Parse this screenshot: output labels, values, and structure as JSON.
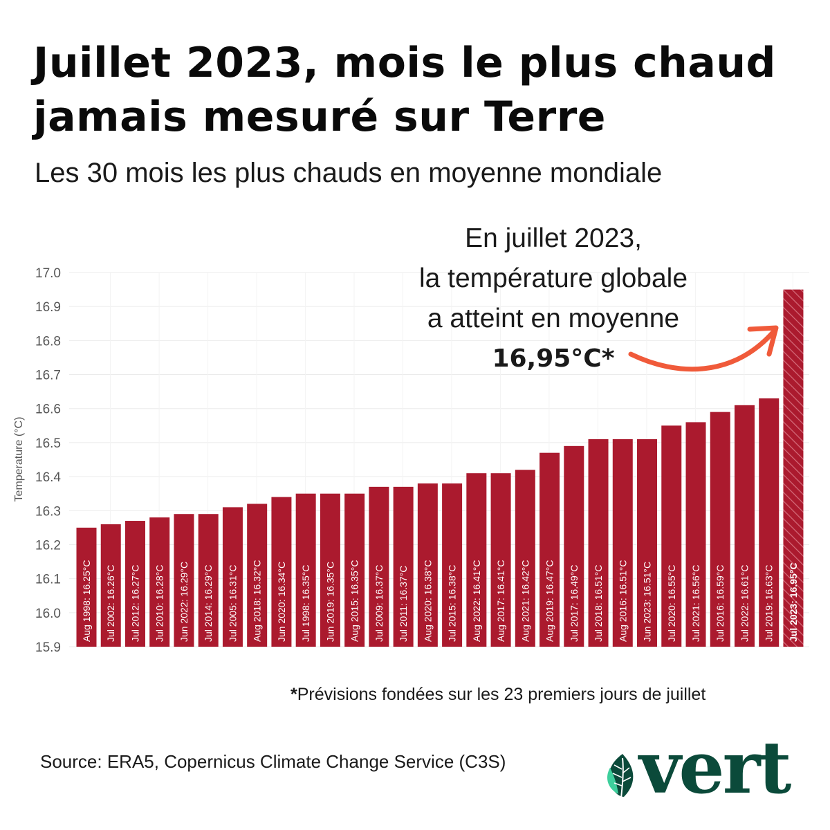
{
  "header": {
    "title_line1": "Juillet 2023, mois le plus chaud",
    "title_line2": "jamais mesuré sur Terre",
    "subtitle": "Les 30 mois les plus chauds en moyenne mondiale"
  },
  "annotation": {
    "line1": "En juillet 2023,",
    "line2": "la température globale",
    "line3": "a atteint en moyenne",
    "line4": "16,95°C*"
  },
  "footnote": {
    "star": "*",
    "text": "Prévisions fondées sur les 23 premiers jours de juillet"
  },
  "source": "Source: ERA5, Copernicus Climate Change Service (C3S)",
  "logo": {
    "text": "vert",
    "leaf_icon": "leaf-icon"
  },
  "colors": {
    "bar": "#ab1a2e",
    "highlight_bar": "#ab1a2e",
    "arrow": "#f05a3a",
    "brand_green": "#0b4a3a",
    "leaf_light": "#3ecf9c"
  },
  "chart_data": {
    "type": "bar",
    "ylabel": "Temperature (°C)",
    "ylim": [
      15.9,
      17.0
    ],
    "yticks": [
      "15.9",
      "16.0",
      "16.1",
      "16.2",
      "16.3",
      "16.4",
      "16.5",
      "16.6",
      "16.7",
      "16.8",
      "16.9",
      "17.0"
    ],
    "grid": true,
    "categories": [
      "Aug 1998",
      "Jul 2002",
      "Jul 2012",
      "Jul 2010",
      "Jun 2022",
      "Jul 2014",
      "Jul 2005",
      "Aug 2018",
      "Jun 2020",
      "Jul 1998",
      "Jun 2019",
      "Aug 2015",
      "Jul 2009",
      "Jul 2011",
      "Aug 2020",
      "Jul 2015",
      "Aug 2022",
      "Aug 2017",
      "Aug 2021",
      "Aug 2019",
      "Jul 2017",
      "Jul 2018",
      "Aug 2016",
      "Jun 2023",
      "Jul 2020",
      "Jul 2021",
      "Jul 2016",
      "Jul 2022",
      "Jul 2019",
      "Jul 2023"
    ],
    "values": [
      16.25,
      16.26,
      16.27,
      16.28,
      16.29,
      16.29,
      16.31,
      16.32,
      16.34,
      16.35,
      16.35,
      16.35,
      16.37,
      16.37,
      16.38,
      16.38,
      16.41,
      16.41,
      16.42,
      16.47,
      16.49,
      16.51,
      16.51,
      16.51,
      16.55,
      16.56,
      16.59,
      16.61,
      16.63,
      16.95
    ],
    "bar_labels": [
      "Aug 1998: 16.25°C",
      "Jul 2002: 16.26°C",
      "Jul 2012: 16.27°C",
      "Jul 2010: 16.28°C",
      "Jun 2022: 16.29°C",
      "Jul 2014: 16.29°C",
      "Jul 2005: 16.31°C",
      "Aug 2018: 16.32°C",
      "Jun 2020: 16.34°C",
      "Jul 1998: 16.35°C",
      "Jun 2019: 16.35°C",
      "Aug 2015: 16.35°C",
      "Jul 2009: 16.37°C",
      "Jul 2011: 16.37°C",
      "Aug 2020: 16.38°C",
      "Jul 2015: 16.38°C",
      "Aug 2022: 16.41°C",
      "Aug 2017: 16.41°C",
      "Aug 2021: 16.42°C",
      "Aug 2019: 16.47°C",
      "Jul 2017: 16.49°C",
      "Jul 2018: 16.51°C",
      "Aug 2016: 16.51°C",
      "Jun 2023: 16.51°C",
      "Jul 2020: 16.55°C",
      "Jul 2021: 16.56°C",
      "Jul 2016: 16.59°C",
      "Jul 2022: 16.61°C",
      "Jul 2019: 16.63°C",
      "Jul 2023: 16.95°C"
    ],
    "highlight_index": 29
  }
}
